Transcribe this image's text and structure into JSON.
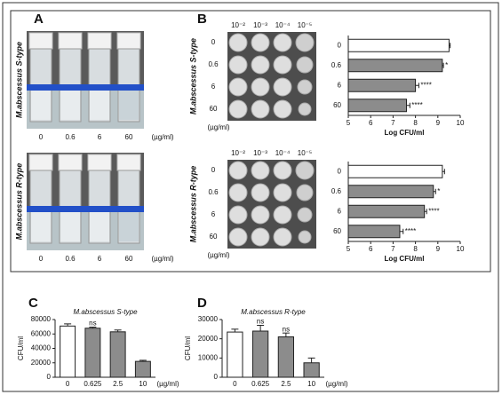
{
  "figure": {
    "panels": [
      "A",
      "B",
      "C",
      "D"
    ],
    "strains": [
      "M.abscessus S-type",
      "M.abscessus R-type"
    ],
    "doses": [
      "0",
      "0.6",
      "6",
      "60"
    ],
    "dose_unit": "(µg/ml)",
    "dilutions": [
      "10⁻²",
      "10⁻³",
      "10⁻⁴",
      "10⁻⁵"
    ]
  },
  "chart_data": [
    {
      "type": "hbar",
      "categories": [
        "0",
        "0.6",
        "6",
        "60"
      ],
      "values": [
        9.5,
        9.2,
        8.0,
        7.6
      ],
      "errors": [
        0.05,
        0.05,
        0.15,
        0.15
      ],
      "significance": [
        null,
        "*",
        "****",
        "****"
      ],
      "colors": [
        "#ffffff",
        "#8c8c8c",
        "#8c8c8c",
        "#8c8c8c"
      ],
      "xlim": [
        5,
        10
      ],
      "xticks": [
        5,
        6,
        7,
        8,
        9,
        10
      ],
      "xlabel": "Log CFU/ml"
    },
    {
      "type": "hbar",
      "categories": [
        "0",
        "0.6",
        "6",
        "60"
      ],
      "values": [
        9.2,
        8.8,
        8.4,
        7.3
      ],
      "errors": [
        0.1,
        0.1,
        0.1,
        0.15
      ],
      "significance": [
        null,
        "*",
        "****",
        "****"
      ],
      "colors": [
        "#ffffff",
        "#8c8c8c",
        "#8c8c8c",
        "#8c8c8c"
      ],
      "xlim": [
        5,
        10
      ],
      "xticks": [
        5,
        6,
        7,
        8,
        9,
        10
      ],
      "xlabel": "Log CFU/ml"
    },
    {
      "type": "bar",
      "title": "M.abscessus S-type",
      "categories": [
        "0",
        "0.625",
        "2.5",
        "10"
      ],
      "values": [
        71000,
        68000,
        63000,
        22000
      ],
      "errors": [
        3000,
        1500,
        2500,
        1500
      ],
      "significance": [
        null,
        "ns",
        null,
        null
      ],
      "colors": [
        "#ffffff",
        "#8c8c8c",
        "#8c8c8c",
        "#8c8c8c"
      ],
      "ylim": [
        0,
        80000
      ],
      "yticks": [
        0,
        20000,
        40000,
        60000,
        80000
      ],
      "ylabel": "CFU/ml",
      "xunit": "(µg/ml)"
    },
    {
      "type": "bar",
      "title": "M.abscessus R-type",
      "categories": [
        "0",
        "0.625",
        "2.5",
        "10"
      ],
      "values": [
        23500,
        24000,
        21000,
        7500
      ],
      "errors": [
        1500,
        3000,
        2000,
        2500
      ],
      "significance": [
        null,
        "ns",
        "ns",
        null
      ],
      "colors": [
        "#ffffff",
        "#8c8c8c",
        "#8c8c8c",
        "#8c8c8c"
      ],
      "ylim": [
        0,
        30000
      ],
      "yticks": [
        0,
        10000,
        20000,
        30000
      ],
      "ylabel": "CFU/ml",
      "xunit": "(µg/ml)"
    }
  ]
}
